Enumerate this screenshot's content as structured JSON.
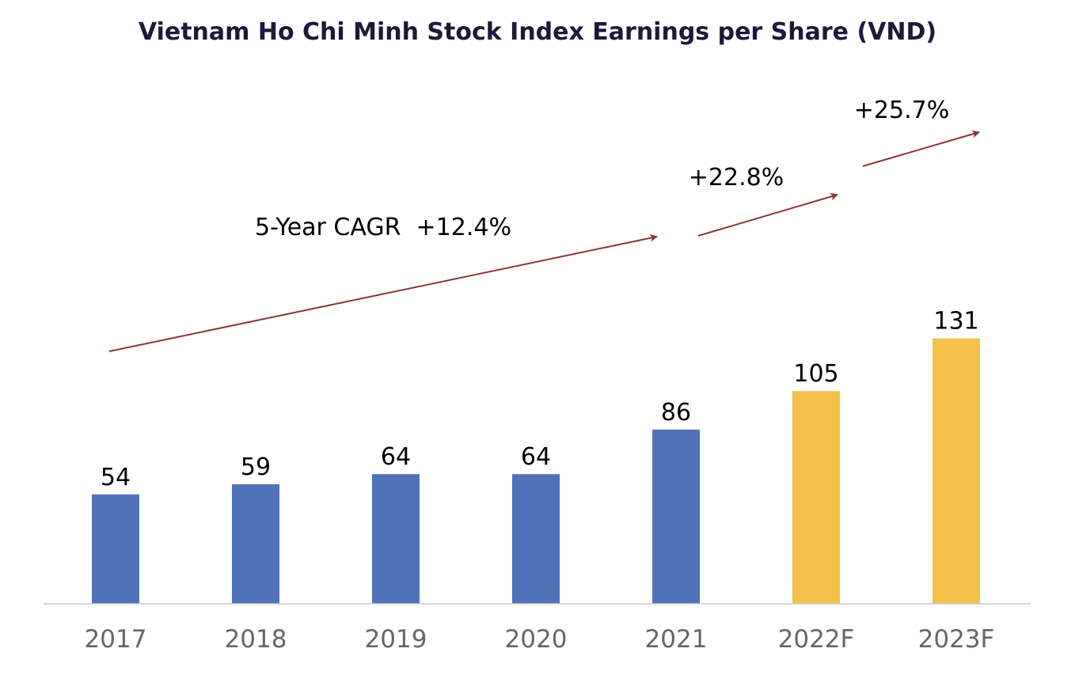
{
  "chart_data": {
    "type": "bar",
    "title": "Vietnam Ho Chi Minh Stock Index Earnings per Share (VND)",
    "xlabel": "",
    "ylabel": "",
    "ylim": [
      0,
      150
    ],
    "grid": false,
    "categories": [
      "2017",
      "2018",
      "2019",
      "2020",
      "2021",
      "2022F",
      "2023F"
    ],
    "values": [
      54,
      59,
      64,
      64,
      86,
      105,
      131
    ],
    "value_labels": [
      "54",
      "59",
      "64",
      "64",
      "86",
      "105",
      "131"
    ],
    "forecast": [
      false,
      false,
      false,
      false,
      false,
      true,
      true
    ],
    "annotations": [
      {
        "text": "5-Year CAGR  +12.4%",
        "from_category": "2017",
        "to_category": "2021",
        "note": "growth arrow"
      },
      {
        "text": "+22.8%",
        "from_category": "2021",
        "to_category": "2022F",
        "note": "growth arrow"
      },
      {
        "text": "+25.7%",
        "from_category": "2022F",
        "to_category": "2023F",
        "note": "growth arrow"
      }
    ]
  },
  "colors": {
    "actual": "#4F72B8",
    "forecast": "#F4C24A",
    "arrow": "#8B3535",
    "title": "#1A1A3A",
    "axis_text": "#666666",
    "value_text": "#000000",
    "axis_line": "#CCCCCC"
  }
}
